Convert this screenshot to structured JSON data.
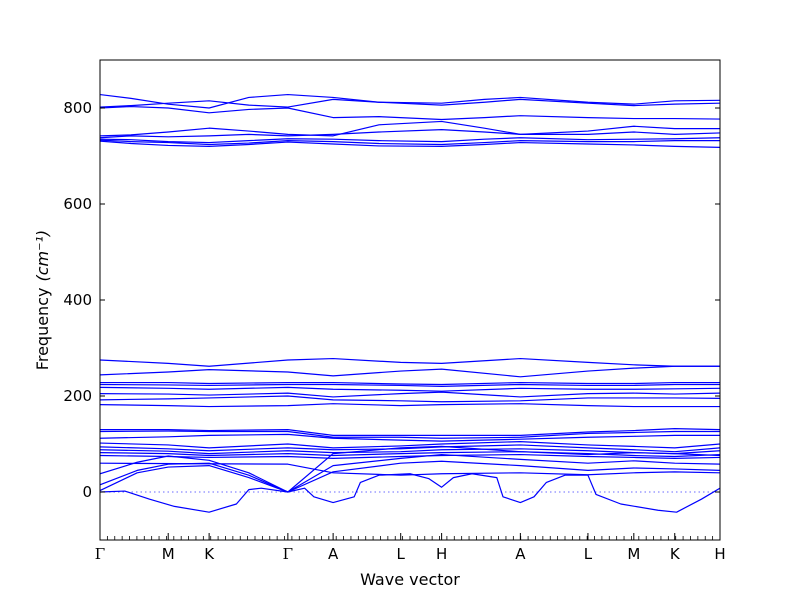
{
  "chart_data": {
    "type": "line",
    "title": "",
    "xlabel": "Wave vector",
    "ylabel": "Frequency",
    "ylabel_unit": "(cm⁻¹)",
    "ylim": [
      -100,
      900
    ],
    "yticks": [
      0,
      200,
      400,
      600,
      800
    ],
    "xlim": [
      0,
      1
    ],
    "grid": false,
    "legend": "none",
    "line_color": "#0000ff",
    "zero_line_color": "#6a6aff",
    "segments": [
      {
        "label": "Γ",
        "x": 0.0
      },
      {
        "label": "M",
        "x": 0.11
      },
      {
        "label": "K",
        "x": 0.176
      },
      {
        "label": "Γ",
        "x": 0.303
      },
      {
        "label": "A",
        "x": 0.376
      },
      {
        "label": "L",
        "x": 0.485
      },
      {
        "label": "H",
        "x": 0.551
      },
      {
        "label": "A",
        "x": 0.678
      },
      {
        "label": "L",
        "x": 0.787
      },
      {
        "label": "M",
        "x": 0.861
      },
      {
        "label": "K",
        "x": 0.927
      },
      {
        "label": "H",
        "x": 1.0
      }
    ],
    "series": [
      {
        "x": [
          0,
          0.05,
          0.11,
          0.176,
          0.24,
          0.303,
          0.376,
          0.45,
          0.551,
          0.62,
          0.678,
          0.787,
          0.861,
          0.927,
          1.0
        ],
        "y": [
          828,
          820,
          808,
          800,
          822,
          828,
          822,
          812,
          810,
          818,
          822,
          812,
          808,
          815,
          816
        ]
      },
      {
        "x": [
          0,
          0.05,
          0.11,
          0.176,
          0.24,
          0.303,
          0.376,
          0.45,
          0.551,
          0.62,
          0.678,
          0.787,
          0.861,
          0.927,
          1.0
        ],
        "y": [
          802,
          805,
          810,
          815,
          806,
          802,
          818,
          812,
          806,
          812,
          818,
          810,
          805,
          808,
          810
        ]
      },
      {
        "x": [
          0,
          0.05,
          0.11,
          0.176,
          0.24,
          0.303,
          0.376,
          0.45,
          0.551,
          0.62,
          0.678,
          0.787,
          0.861,
          0.927,
          1.0
        ],
        "y": [
          800,
          803,
          800,
          790,
          797,
          800,
          780,
          782,
          776,
          780,
          784,
          780,
          778,
          778,
          777
        ]
      },
      {
        "x": [
          0,
          0.05,
          0.11,
          0.176,
          0.24,
          0.303,
          0.376,
          0.45,
          0.551,
          0.62,
          0.678,
          0.787,
          0.861,
          0.927,
          1.0
        ],
        "y": [
          742,
          744,
          750,
          758,
          752,
          745,
          742,
          765,
          772,
          758,
          745,
          752,
          762,
          757,
          757
        ]
      },
      {
        "x": [
          0,
          0.05,
          0.11,
          0.176,
          0.24,
          0.303,
          0.376,
          0.45,
          0.551,
          0.62,
          0.678,
          0.787,
          0.861,
          0.927,
          1.0
        ],
        "y": [
          738,
          742,
          740,
          742,
          745,
          742,
          745,
          750,
          755,
          750,
          745,
          745,
          750,
          745,
          748
        ]
      },
      {
        "x": [
          0,
          0.05,
          0.11,
          0.176,
          0.24,
          0.303,
          0.376,
          0.45,
          0.551,
          0.62,
          0.678,
          0.787,
          0.861,
          0.927,
          1.0
        ],
        "y": [
          735,
          734,
          730,
          728,
          732,
          736,
          735,
          732,
          730,
          735,
          738,
          734,
          735,
          736,
          738
        ]
      },
      {
        "x": [
          0,
          0.05,
          0.11,
          0.176,
          0.24,
          0.303,
          0.376,
          0.45,
          0.551,
          0.62,
          0.678,
          0.787,
          0.861,
          0.927,
          1.0
        ],
        "y": [
          733,
          730,
          728,
          724,
          727,
          732,
          730,
          726,
          724,
          728,
          732,
          730,
          730,
          732,
          732
        ]
      },
      {
        "x": [
          0,
          0.05,
          0.11,
          0.176,
          0.24,
          0.303,
          0.376,
          0.45,
          0.551,
          0.62,
          0.678,
          0.787,
          0.861,
          0.927,
          1.0
        ],
        "y": [
          731,
          726,
          722,
          720,
          724,
          729,
          725,
          721,
          720,
          724,
          728,
          725,
          723,
          720,
          718
        ]
      },
      {
        "x": [
          0,
          0.11,
          0.176,
          0.303,
          0.376,
          0.485,
          0.551,
          0.678,
          0.787,
          0.861,
          0.927,
          1.0
        ],
        "y": [
          275,
          268,
          262,
          275,
          278,
          270,
          268,
          278,
          270,
          265,
          262,
          262
        ]
      },
      {
        "x": [
          0,
          0.11,
          0.176,
          0.303,
          0.376,
          0.485,
          0.551,
          0.678,
          0.787,
          0.861,
          0.927,
          1.0
        ],
        "y": [
          244,
          250,
          255,
          250,
          242,
          252,
          256,
          240,
          252,
          258,
          262,
          262
        ]
      },
      {
        "x": [
          0,
          0.11,
          0.176,
          0.303,
          0.376,
          0.485,
          0.551,
          0.678,
          0.787,
          0.861,
          0.927,
          1.0
        ],
        "y": [
          228,
          228,
          226,
          228,
          228,
          225,
          224,
          228,
          226,
          226,
          228,
          228
        ]
      },
      {
        "x": [
          0,
          0.11,
          0.176,
          0.303,
          0.376,
          0.485,
          0.551,
          0.678,
          0.787,
          0.861,
          0.927,
          1.0
        ],
        "y": [
          224,
          223,
          222,
          224,
          224,
          222,
          220,
          224,
          222,
          222,
          224,
          224
        ]
      },
      {
        "x": [
          0,
          0.11,
          0.176,
          0.303,
          0.376,
          0.485,
          0.551,
          0.678,
          0.787,
          0.861,
          0.927,
          1.0
        ],
        "y": [
          218,
          216,
          214,
          218,
          214,
          212,
          210,
          216,
          214,
          214,
          215,
          216
        ]
      },
      {
        "x": [
          0,
          0.11,
          0.176,
          0.303,
          0.376,
          0.485,
          0.551,
          0.678,
          0.787,
          0.861,
          0.927,
          1.0
        ],
        "y": [
          205,
          204,
          202,
          206,
          198,
          205,
          208,
          198,
          205,
          206,
          204,
          206
        ]
      },
      {
        "x": [
          0,
          0.11,
          0.176,
          0.303,
          0.376,
          0.485,
          0.551,
          0.678,
          0.787,
          0.861,
          0.927,
          1.0
        ],
        "y": [
          192,
          194,
          196,
          200,
          192,
          190,
          188,
          190,
          196,
          196,
          196,
          195
        ]
      },
      {
        "x": [
          0,
          0.11,
          0.176,
          0.303,
          0.376,
          0.485,
          0.551,
          0.678,
          0.787,
          0.861,
          0.927,
          1.0
        ],
        "y": [
          182,
          180,
          178,
          180,
          184,
          180,
          182,
          184,
          180,
          178,
          178,
          178
        ]
      },
      {
        "x": [
          0,
          0.11,
          0.176,
          0.303,
          0.376,
          0.485,
          0.551,
          0.678,
          0.787,
          0.861,
          0.927,
          1.0
        ],
        "y": [
          130,
          130,
          128,
          130,
          118,
          118,
          118,
          118,
          125,
          128,
          132,
          130
        ]
      },
      {
        "x": [
          0,
          0.11,
          0.176,
          0.303,
          0.376,
          0.485,
          0.551,
          0.678,
          0.787,
          0.861,
          0.927,
          1.0
        ],
        "y": [
          126,
          127,
          126,
          126,
          114,
          114,
          112,
          114,
          122,
          124,
          126,
          126
        ]
      },
      {
        "x": [
          0,
          0.11,
          0.176,
          0.303,
          0.376,
          0.485,
          0.551,
          0.678,
          0.787,
          0.861,
          0.927,
          1.0
        ],
        "y": [
          112,
          115,
          118,
          120,
          112,
          108,
          106,
          110,
          114,
          116,
          118,
          118
        ]
      },
      {
        "x": [
          0,
          0.11,
          0.176,
          0.303,
          0.376,
          0.485,
          0.551,
          0.678,
          0.787,
          0.861,
          0.927,
          1.0
        ],
        "y": [
          102,
          98,
          92,
          100,
          92,
          96,
          100,
          105,
          98,
          95,
          92,
          100
        ]
      },
      {
        "x": [
          0,
          0.11,
          0.176,
          0.303,
          0.376,
          0.485,
          0.551,
          0.678,
          0.787,
          0.861,
          0.927,
          1.0
        ],
        "y": [
          94,
          90,
          86,
          92,
          88,
          90,
          94,
          98,
          92,
          88,
          84,
          92
        ]
      },
      {
        "x": [
          0,
          0.11,
          0.176,
          0.303,
          0.376,
          0.485,
          0.551,
          0.678,
          0.787,
          0.861,
          0.927,
          1.0
        ],
        "y": [
          88,
          85,
          80,
          86,
          82,
          84,
          88,
          90,
          86,
          82,
          80,
          86
        ]
      },
      {
        "x": [
          0,
          0.11,
          0.176,
          0.303,
          0.376,
          0.485,
          0.551,
          0.678,
          0.787,
          0.861,
          0.927,
          1.0
        ],
        "y": [
          82,
          80,
          76,
          80,
          76,
          80,
          82,
          84,
          80,
          76,
          74,
          78
        ]
      },
      {
        "x": [
          0,
          0.11,
          0.176,
          0.303,
          0.376,
          0.485,
          0.551,
          0.678,
          0.787,
          0.861,
          0.927,
          1.0
        ],
        "y": [
          76,
          74,
          72,
          74,
          70,
          74,
          76,
          78,
          74,
          72,
          70,
          72
        ]
      },
      {
        "x": [
          0,
          0.06,
          0.11,
          0.176,
          0.24,
          0.303,
          0.376,
          0.485,
          0.551,
          0.678,
          0.787,
          0.861,
          0.927,
          1.0
        ],
        "y": [
          38,
          62,
          75,
          66,
          40,
          0,
          80,
          92,
          95,
          84,
          78,
          82,
          80,
          76
        ]
      },
      {
        "x": [
          0,
          0.06,
          0.11,
          0.176,
          0.24,
          0.303,
          0.376,
          0.485,
          0.551,
          0.678,
          0.787,
          0.861,
          0.927,
          1.0
        ],
        "y": [
          15,
          45,
          58,
          60,
          35,
          0,
          55,
          70,
          78,
          68,
          60,
          65,
          60,
          58
        ]
      },
      {
        "x": [
          0,
          0.06,
          0.11,
          0.176,
          0.24,
          0.303,
          0.376,
          0.485,
          0.551,
          0.678,
          0.787,
          0.861,
          0.927,
          1.0
        ],
        "y": [
          3,
          40,
          52,
          55,
          30,
          0,
          42,
          60,
          64,
          55,
          45,
          50,
          48,
          45
        ]
      },
      {
        "x": [
          0,
          0.303,
          0.376,
          0.485,
          0.551,
          0.678,
          0.787,
          0.861,
          0.927,
          1.0
        ],
        "y": [
          60,
          58,
          40,
          35,
          38,
          40,
          36,
          40,
          42,
          40
        ]
      },
      {
        "x": [
          0,
          0.04,
          0.08,
          0.12,
          0.176,
          0.22,
          0.24,
          0.26,
          0.303,
          0.33,
          0.345,
          0.376,
          0.41,
          0.42,
          0.45,
          0.5,
          0.53,
          0.551,
          0.57,
          0.6,
          0.64,
          0.65,
          0.678,
          0.7,
          0.72,
          0.75,
          0.787,
          0.8,
          0.84,
          0.9,
          0.93,
          0.97,
          1.0
        ],
        "y": [
          0,
          2,
          -15,
          -30,
          -42,
          -25,
          5,
          8,
          0,
          8,
          -10,
          -22,
          -10,
          20,
          35,
          38,
          28,
          10,
          30,
          38,
          30,
          -10,
          -22,
          -10,
          20,
          35,
          35,
          -5,
          -25,
          -38,
          -42,
          -15,
          8
        ]
      }
    ]
  }
}
